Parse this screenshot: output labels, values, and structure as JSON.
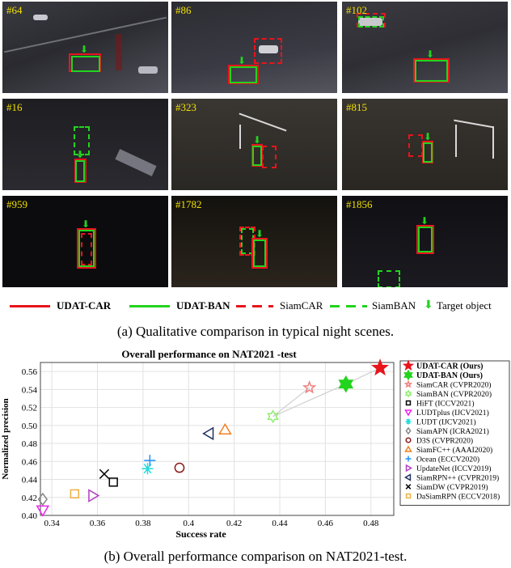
{
  "frames": [
    {
      "label": "#64"
    },
    {
      "label": "#86"
    },
    {
      "label": "#102"
    },
    {
      "label": "#16"
    },
    {
      "label": "#323"
    },
    {
      "label": "#815"
    },
    {
      "label": "#959"
    },
    {
      "label": "#1782"
    },
    {
      "label": "#1856"
    }
  ],
  "qual_legend": {
    "udat_car": "UDAT-CAR",
    "udat_ban": "UDAT-BAN",
    "siamcar": "SiamCAR",
    "siamban": "SiamBAN",
    "target": "Target object"
  },
  "caption_a": "(a) Qualitative comparison in typical night scenes.",
  "caption_b": "(b) Overall performance comparison on NAT2021-test.",
  "colors": {
    "udat_car": "#e8141c",
    "udat_ban": "#22d41e",
    "siamcar": "#e8141c",
    "siamban": "#22d41e",
    "target": "#22d41e"
  },
  "chart_data": {
    "type": "scatter",
    "title": "Overall performance on NAT2021 -test",
    "xlabel": "Success rate",
    "ylabel": "Normalized precision",
    "xlim": [
      0.335,
      0.49
    ],
    "ylim": [
      0.4,
      0.57
    ],
    "xticks": [
      "0.34",
      "0.36",
      "0.38",
      "0.4",
      "0.42",
      "0.44",
      "0.46",
      "0.48"
    ],
    "yticks": [
      "0.40",
      "0.42",
      "0.44",
      "0.46",
      "0.48",
      "0.50",
      "0.52",
      "0.54",
      "0.56"
    ],
    "grid": true,
    "legend_position": "right",
    "series": [
      {
        "name": "UDAT-CAR (Ours)",
        "x": 0.484,
        "y": 0.564,
        "marker": "star",
        "color": "#e8141c"
      },
      {
        "name": "UDAT-BAN (Ours)",
        "x": 0.469,
        "y": 0.546,
        "marker": "hexagram",
        "color": "#22d41e"
      },
      {
        "name": "SiamCAR (CVPR2020)",
        "x": 0.453,
        "y": 0.542,
        "marker": "star",
        "color": "#f08080"
      },
      {
        "name": "SiamBAN (CVPR2020)",
        "x": 0.437,
        "y": 0.51,
        "marker": "hexagram",
        "color": "#90ee70"
      },
      {
        "name": "HiFT (ICCV2021)",
        "x": 0.367,
        "y": 0.437,
        "marker": "square",
        "color": "#000000"
      },
      {
        "name": "LUDTplus (IJCV2021)",
        "x": 0.336,
        "y": 0.406,
        "marker": "triangle-down",
        "color": "#ee22ee"
      },
      {
        "name": "LUDT (IJCV2021)",
        "x": 0.382,
        "y": 0.452,
        "marker": "asterisk",
        "color": "#22dddd"
      },
      {
        "name": "SiamAPN (ICRA2021)",
        "x": 0.336,
        "y": 0.418,
        "marker": "diamond",
        "color": "#888888"
      },
      {
        "name": "D3S (CVPR2020)",
        "x": 0.396,
        "y": 0.453,
        "marker": "circle",
        "color": "#8b1a1a"
      },
      {
        "name": "SiamFC++ (AAAI2020)",
        "x": 0.416,
        "y": 0.495,
        "marker": "triangle-up",
        "color": "#f08020"
      },
      {
        "name": "Ocean (ECCV2020)",
        "x": 0.383,
        "y": 0.461,
        "marker": "plus",
        "color": "#1e90ff"
      },
      {
        "name": "UpdateNet (ICCV2019)",
        "x": 0.358,
        "y": 0.422,
        "marker": "triangle-right",
        "color": "#b040c0"
      },
      {
        "name": "SiamRPN++ (CVPR2019)",
        "x": 0.409,
        "y": 0.491,
        "marker": "triangle-left",
        "color": "#203060"
      },
      {
        "name": "SiamDW (CVPR2019)",
        "x": 0.363,
        "y": 0.446,
        "marker": "x",
        "color": "#000000"
      },
      {
        "name": "DaSiamRPN (ECCV2018)",
        "x": 0.35,
        "y": 0.424,
        "marker": "square",
        "color": "#f0b040"
      }
    ],
    "connections": [
      [
        0,
        1
      ],
      [
        2,
        3
      ],
      [
        1,
        3
      ]
    ]
  }
}
